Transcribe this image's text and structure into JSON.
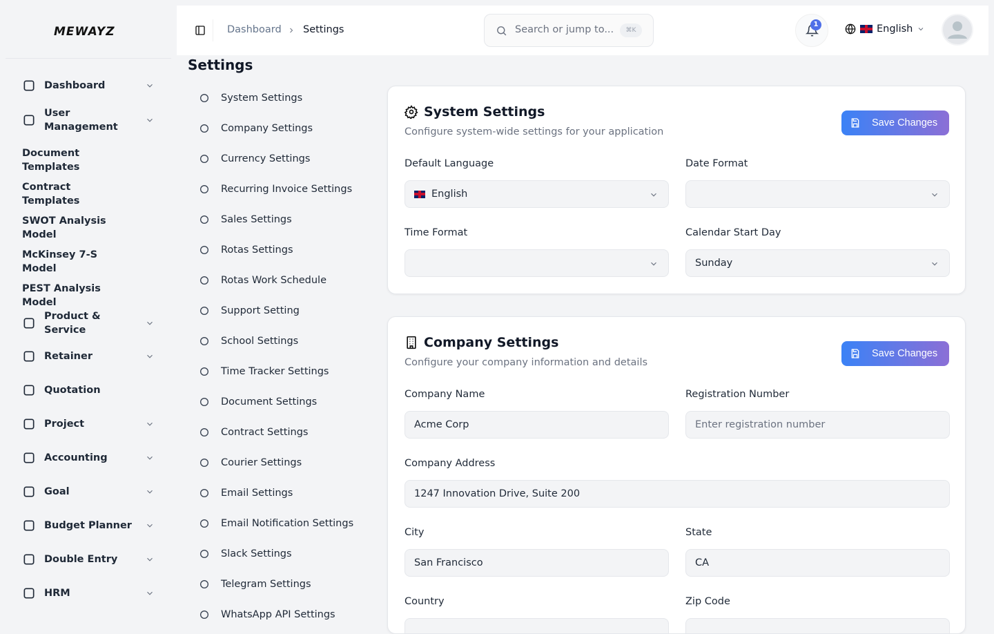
{
  "brand": {
    "logo": "MEWAYZ"
  },
  "sidebar": {
    "items": [
      {
        "label": "Dashboard",
        "icon": "grid-icon",
        "chevron": true
      },
      {
        "label": "User Management",
        "icon": "users-icon",
        "chevron": true
      },
      {
        "label": "Document Templates",
        "chevron": false
      },
      {
        "label": "Contract Templates",
        "chevron": false
      },
      {
        "label": "SWOT Analysis Model",
        "chevron": false
      },
      {
        "label": "McKinsey 7-S Model",
        "chevron": false
      },
      {
        "label": "PEST Analysis Model",
        "chevron": false
      },
      {
        "label": "Product & Service",
        "icon": "layers-icon",
        "chevron": true
      },
      {
        "label": "Retainer",
        "icon": "save-icon",
        "chevron": true
      },
      {
        "label": "Quotation",
        "icon": "file-check-icon",
        "chevron": false
      },
      {
        "label": "Project",
        "icon": "folder-kanban-icon",
        "chevron": true
      },
      {
        "label": "Accounting",
        "icon": "calculator-icon",
        "chevron": true
      },
      {
        "label": "Goal",
        "icon": "target-icon",
        "chevron": true
      },
      {
        "label": "Budget Planner",
        "icon": "dollar-icon",
        "chevron": true
      },
      {
        "label": "Double Entry",
        "icon": "book-icon",
        "chevron": true
      },
      {
        "label": "HRM",
        "icon": "user-cog-icon",
        "chevron": true
      }
    ]
  },
  "header": {
    "breadcrumb": [
      "Dashboard",
      "Settings"
    ],
    "search_placeholder": "Search or jump to...",
    "search_shortcut": "⌘K",
    "notification_count": "1",
    "language": "English"
  },
  "page": {
    "title": "Settings"
  },
  "settings_nav": [
    {
      "label": "System Settings",
      "icon": "gear-icon"
    },
    {
      "label": "Company Settings",
      "icon": "building-icon"
    },
    {
      "label": "Currency Settings",
      "icon": "dollar-icon"
    },
    {
      "label": "Recurring Invoice Settings",
      "icon": "refresh-icon"
    },
    {
      "label": "Sales Settings",
      "icon": "trending-up-icon"
    },
    {
      "label": "Rotas Settings",
      "icon": "gear-icon"
    },
    {
      "label": "Rotas Work Schedule",
      "icon": "calendar-icon"
    },
    {
      "label": "Support Setting",
      "icon": "headphones-icon"
    },
    {
      "label": "School Settings",
      "icon": "graduation-cap-icon"
    },
    {
      "label": "Time Tracker Settings",
      "icon": "clock-icon"
    },
    {
      "label": "Document Settings",
      "icon": "file-icon"
    },
    {
      "label": "Contract Settings",
      "icon": "file-pen-icon"
    },
    {
      "label": "Courier Settings",
      "icon": "truck-icon"
    },
    {
      "label": "Email Settings",
      "icon": "mail-icon"
    },
    {
      "label": "Email Notification Settings",
      "icon": "mail-icon"
    },
    {
      "label": "Slack Settings",
      "icon": "slack-icon"
    },
    {
      "label": "Telegram Settings",
      "icon": "send-icon"
    },
    {
      "label": "WhatsApp API Settings",
      "icon": "message-circle-icon"
    }
  ],
  "system": {
    "title": "System Settings",
    "subtitle": "Configure system-wide settings for your application",
    "save": "Save Changes",
    "default_language_label": "Default Language",
    "default_language": "English",
    "date_format_label": "Date Format",
    "date_format": "",
    "time_format_label": "Time Format",
    "time_format": "",
    "calendar_start_label": "Calendar Start Day",
    "calendar_start": "Sunday"
  },
  "company": {
    "title": "Company Settings",
    "subtitle": "Configure your company information and details",
    "save": "Save Changes",
    "name_label": "Company Name",
    "name": "Acme Corp",
    "reg_label": "Registration Number",
    "reg_placeholder": "Enter registration number",
    "address_label": "Company Address",
    "address": "1247 Innovation Drive, Suite 200",
    "city_label": "City",
    "city": "San Francisco",
    "state_label": "State",
    "state": "CA",
    "country_label": "Country",
    "zip_label": "Zip Code"
  },
  "colors": {
    "accent_start": "#3b82f6",
    "accent_end": "#8b6fd6",
    "badge": "#4f6fe8"
  }
}
